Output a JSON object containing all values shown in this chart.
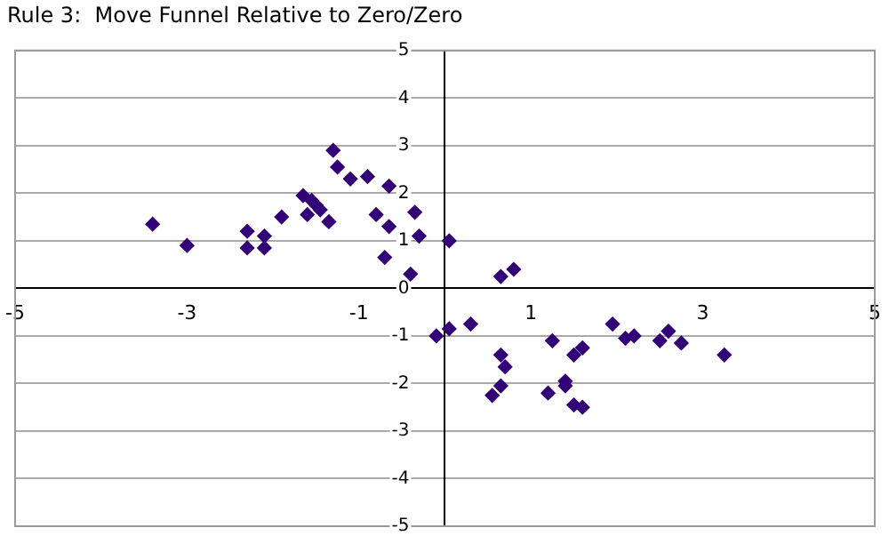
{
  "chart_data": {
    "type": "scatter",
    "title": "Rule 3:  Move Funnel Relative to Zero/Zero",
    "marker": "diamond",
    "grid": "y",
    "xlim": [
      -5,
      5
    ],
    "xticks": [
      -5,
      -3,
      -1,
      1,
      3,
      5
    ],
    "ylim": [
      -5,
      5
    ],
    "yticks": [
      -5,
      -4,
      -3,
      -2,
      -1,
      0,
      1,
      2,
      3,
      4,
      5
    ],
    "series": [
      {
        "color": "#330077",
        "x": [
          -3.4,
          -3.0,
          -2.3,
          -2.3,
          -2.1,
          -2.1,
          -1.9,
          -1.65,
          -1.6,
          -1.55,
          -1.5,
          -1.45,
          -1.35,
          -1.3,
          -1.25,
          -1.1,
          -0.9,
          -0.8,
          -0.65,
          -0.65,
          -0.7,
          -0.4,
          -0.35,
          -0.3,
          0.05,
          0.65,
          0.8,
          -0.1,
          0.05,
          0.3,
          0.65,
          0.7,
          0.65,
          0.55,
          1.25,
          1.2,
          1.4,
          1.4,
          1.5,
          1.6,
          1.5,
          1.6,
          1.95,
          2.1,
          2.2,
          2.5,
          2.6,
          2.75,
          3.25
        ],
        "values": [
          1.35,
          0.9,
          1.2,
          0.85,
          1.1,
          0.85,
          1.5,
          1.95,
          1.55,
          1.85,
          1.75,
          1.65,
          1.4,
          2.9,
          2.55,
          2.3,
          2.35,
          1.55,
          2.15,
          1.3,
          0.65,
          0.3,
          1.6,
          1.1,
          1.0,
          0.25,
          0.4,
          -1.0,
          -0.85,
          -0.75,
          -1.4,
          -1.65,
          -2.05,
          -2.25,
          -1.1,
          -2.2,
          -1.95,
          -2.05,
          -1.4,
          -1.25,
          -2.45,
          -2.5,
          -0.75,
          -1.05,
          -1.0,
          -1.1,
          -0.9,
          -1.15,
          -1.4
        ]
      }
    ]
  }
}
